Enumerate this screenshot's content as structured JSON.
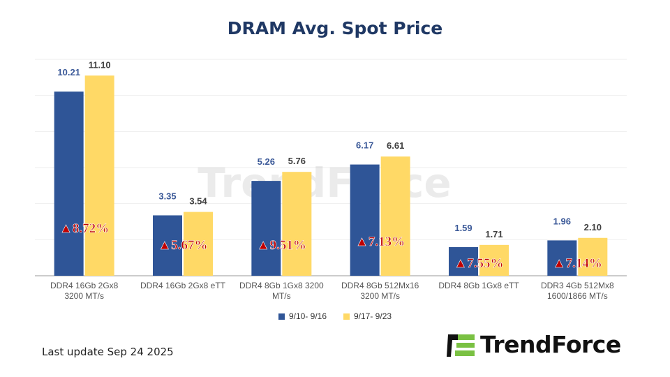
{
  "chart_data": {
    "type": "bar",
    "title": "DRAM Avg. Spot Price",
    "categories": [
      [
        "DDR4 16Gb 2Gx8",
        "3200 MT/s"
      ],
      [
        "DDR4 16Gb 2Gx8 eTT"
      ],
      [
        "DDR4 8Gb 1Gx8 3200",
        "MT/s"
      ],
      [
        "DDR4 8Gb 512Mx16",
        "3200 MT/s"
      ],
      [
        "DDR4 8Gb 1Gx8 eTT"
      ],
      [
        "DDR3 4Gb 512Mx8",
        "1600/1866  MT/s"
      ]
    ],
    "series": [
      {
        "name": "9/10- 9/16",
        "color": "#2f5597",
        "label_color": "#3b5998",
        "values": [
          10.21,
          3.35,
          5.26,
          6.17,
          1.59,
          1.96
        ]
      },
      {
        "name": "9/17- 9/23",
        "color": "#ffd966",
        "label_color": "#404040",
        "values": [
          11.1,
          3.54,
          5.76,
          6.61,
          1.71,
          2.1
        ]
      }
    ],
    "annotations": [
      "▲8.72%",
      "▲5.67%",
      "▲9.51%",
      "▲7.13%",
      "▲7.55%",
      "▲7.14%"
    ],
    "annotation_color": "#c00000",
    "ylim": [
      0,
      12
    ],
    "grid": true,
    "legend": "bottom"
  },
  "watermark": "TrendForce",
  "footer": {
    "update": "Last update Sep 24  2025",
    "logo": "TrendForce"
  }
}
